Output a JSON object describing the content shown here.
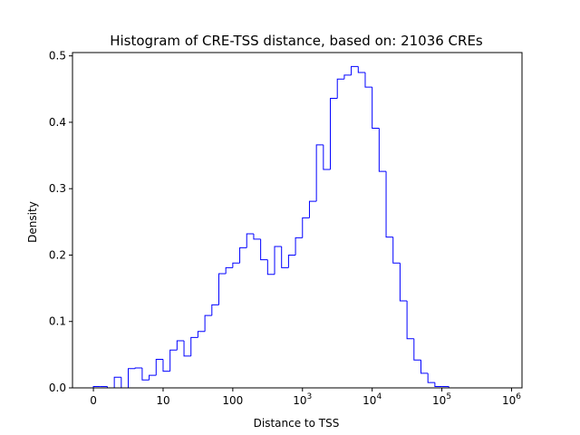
{
  "chart_data": {
    "type": "histogram",
    "title": "Histogram of CRE-TSS distance, based on: 21036 CREs",
    "xlabel": "Distance to TSS",
    "ylabel": "Density",
    "x_scale": "symlog",
    "xlim": [
      -0.3,
      6.15
    ],
    "ylim": [
      0,
      0.505
    ],
    "x_ticks": [
      {
        "value": 0,
        "label": "0"
      },
      {
        "value": 1,
        "label": "10"
      },
      {
        "value": 2,
        "label": "100"
      },
      {
        "value": 3,
        "base": "10",
        "exp": "3"
      },
      {
        "value": 4,
        "base": "10",
        "exp": "4"
      },
      {
        "value": 5,
        "base": "10",
        "exp": "5"
      },
      {
        "value": 6,
        "base": "10",
        "exp": "6"
      }
    ],
    "y_ticks": [
      "0.0",
      "0.1",
      "0.2",
      "0.3",
      "0.4",
      "0.5"
    ],
    "y_tick_values": [
      0,
      0.1,
      0.2,
      0.3,
      0.4,
      0.5
    ],
    "bin_edges_log10": [
      0,
      0.1,
      0.2,
      0.3,
      0.4,
      0.5,
      0.6,
      0.7,
      0.8,
      0.9,
      1.0,
      1.1,
      1.2,
      1.3,
      1.4,
      1.5,
      1.6,
      1.7,
      1.8,
      1.9,
      2.0,
      2.1,
      2.2,
      2.3,
      2.4,
      2.5,
      2.6,
      2.7,
      2.8,
      2.9,
      3.0,
      3.1,
      3.2,
      3.3,
      3.4,
      3.5,
      3.6,
      3.7,
      3.8,
      3.9,
      4.0,
      4.1,
      4.2,
      4.3,
      4.4,
      4.5,
      4.6,
      4.7,
      4.8,
      4.9,
      5.0,
      5.1,
      5.2,
      5.3,
      5.4,
      5.5,
      5.6,
      5.7,
      5.8
    ],
    "density": [
      0.002,
      0.002,
      0,
      0.016,
      0,
      0.029,
      0.03,
      0.012,
      0.019,
      0.043,
      0.025,
      0.057,
      0.071,
      0.048,
      0.076,
      0.085,
      0.109,
      0.125,
      0.172,
      0.181,
      0.188,
      0.211,
      0.232,
      0.224,
      0.193,
      0.171,
      0.213,
      0.181,
      0.2,
      0.226,
      0.256,
      0.281,
      0.366,
      0.329,
      0.436,
      0.465,
      0.471,
      0.484,
      0.475,
      0.453,
      0.391,
      0.326,
      0.227,
      0.188,
      0.131,
      0.074,
      0.042,
      0.022,
      0.008,
      0.002,
      0.002,
      0,
      0,
      0,
      0,
      0,
      0,
      0
    ],
    "color": "#0000ff",
    "grid": false
  }
}
